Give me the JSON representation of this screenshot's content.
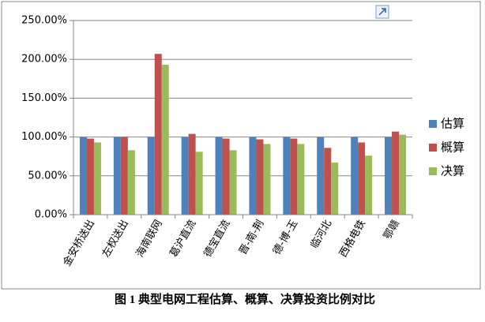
{
  "chart_data": {
    "type": "bar",
    "title": "图 1 典型电网工程估算、概算、决算投资比例对比",
    "categories": [
      "金安桥送出",
      "左权送出",
      "海南联网",
      "葛沪直流",
      "德宝直流",
      "晋-南-荆",
      "德-博-玉",
      "临河北",
      "西格电铁",
      "鄂赣"
    ],
    "series": [
      {
        "name": "估算",
        "color": "#4f81bd",
        "values": [
          100,
          100,
          100,
          100,
          100,
          100,
          100,
          100,
          100,
          100
        ]
      },
      {
        "name": "概算",
        "color": "#c0504d",
        "values": [
          98,
          100,
          207,
          104,
          98,
          97,
          98,
          86,
          93,
          107
        ]
      },
      {
        "name": "决算",
        "color": "#9bbb59",
        "values": [
          93,
          83,
          193,
          81,
          83,
          91,
          91,
          67,
          76,
          103
        ]
      }
    ],
    "ylim": [
      0,
      250
    ],
    "yticks": [
      {
        "value": 0,
        "label": "0.00%"
      },
      {
        "value": 50,
        "label": "50.00%"
      },
      {
        "value": 100,
        "label": "100.00%"
      },
      {
        "value": 150,
        "label": "150.00%"
      },
      {
        "value": 200,
        "label": "200.00%"
      },
      {
        "value": 250,
        "label": "250.00%"
      }
    ],
    "grid": true,
    "legend": "right"
  }
}
